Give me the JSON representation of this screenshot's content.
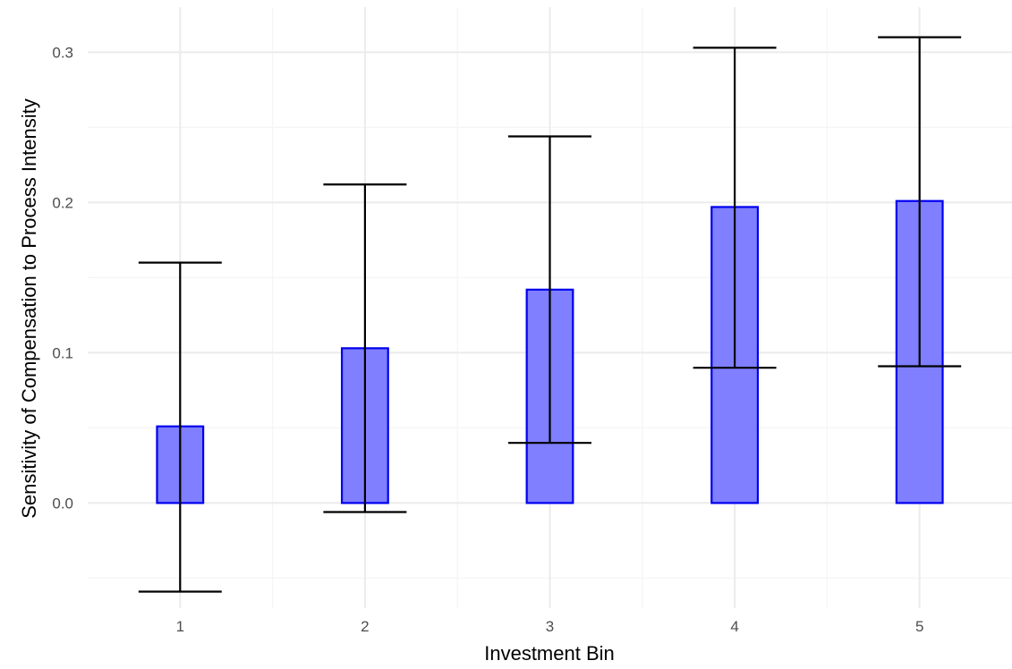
{
  "chart_data": {
    "type": "bar",
    "title": "",
    "xlabel": "Investment Bin",
    "ylabel": "Sensitivity of Compensation to Process Intensity",
    "categories": [
      "1",
      "2",
      "3",
      "4",
      "5"
    ],
    "values": [
      0.051,
      0.103,
      0.142,
      0.197,
      0.201
    ],
    "error_low": [
      -0.059,
      -0.006,
      0.04,
      0.09,
      0.091
    ],
    "error_high": [
      0.16,
      0.212,
      0.244,
      0.303,
      0.31
    ],
    "ylim": [
      -0.07,
      0.33
    ],
    "y_ticks": [
      0.0,
      0.1,
      0.2,
      0.3
    ],
    "y_tick_labels": [
      "0.0",
      "0.1",
      "0.2",
      "0.3"
    ],
    "grid": true,
    "colors": {
      "bar_fill": "#7f7fff",
      "bar_stroke": "#0000ee",
      "error_bar": "#000000",
      "grid_major": "#ebebeb",
      "grid_minor": "#f5f5f5"
    }
  }
}
